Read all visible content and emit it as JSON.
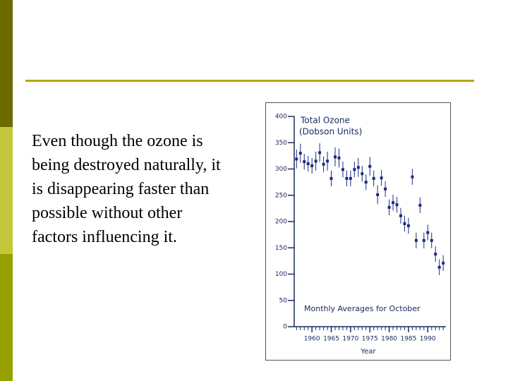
{
  "body_text": [
    "Even though the ozone is",
    "being destroyed naturally, it",
    "is disappearing faster than",
    "possible without other",
    "factors influencing it."
  ],
  "chart_data": {
    "type": "errorbar",
    "title": "Total Ozone",
    "subtitle": "(Dobson Units)",
    "annotation": "Monthly Averages for October",
    "xlabel": "Year",
    "color": "#1c2a80",
    "x": [
      1956,
      1957,
      1958,
      1959,
      1960,
      1961,
      1962,
      1963,
      1964,
      1965,
      1966,
      1967,
      1968,
      1969,
      1970,
      1971,
      1972,
      1973,
      1974,
      1975,
      1976,
      1977,
      1978,
      1979,
      1980,
      1981,
      1982,
      1983,
      1984,
      1985,
      1986,
      1987,
      1988,
      1989,
      1990,
      1991,
      1992,
      1993,
      1994
    ],
    "values": [
      319,
      330,
      314,
      310,
      306,
      315,
      331,
      309,
      315,
      282,
      323,
      321,
      299,
      282,
      282,
      299,
      303,
      291,
      275,
      305,
      282,
      251,
      283,
      262,
      227,
      236,
      232,
      211,
      196,
      192,
      285,
      164,
      231,
      164,
      179,
      164,
      138,
      113,
      121
    ],
    "errors": [
      18,
      18,
      15,
      15,
      15,
      18,
      18,
      15,
      18,
      15,
      18,
      18,
      15,
      15,
      15,
      15,
      18,
      15,
      15,
      18,
      15,
      18,
      15,
      15,
      15,
      15,
      15,
      15,
      15,
      15,
      15,
      15,
      15,
      15,
      15,
      15,
      15,
      15,
      15
    ],
    "xlim": [
      1955.4,
      1994.7
    ],
    "ylim": [
      0,
      400
    ],
    "xticks": [
      1960,
      1965,
      1970,
      1975,
      1980,
      1985,
      1990
    ],
    "yticks": [
      0,
      50,
      100,
      150,
      200,
      250,
      300,
      350,
      400
    ]
  }
}
